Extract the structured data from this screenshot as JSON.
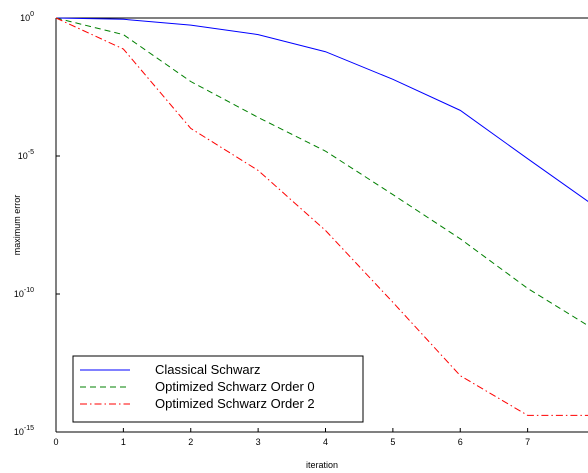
{
  "chart_data": {
    "type": "line",
    "xlabel": "iteration",
    "ylabel": "maximum error",
    "yscale": "log",
    "xlim": [
      0,
      8
    ],
    "ylim": [
      1e-15,
      1
    ],
    "xticks": [
      0,
      1,
      2,
      3,
      4,
      5,
      6,
      7
    ],
    "yticks": [
      {
        "exp": 0,
        "label_base": "10",
        "label_exp": "0"
      },
      {
        "exp": -5,
        "label_base": "10",
        "label_exp": "-5"
      },
      {
        "exp": -10,
        "label_base": "10",
        "label_exp": "-10"
      },
      {
        "exp": -15,
        "label_base": "10",
        "label_exp": "-15"
      }
    ],
    "grid": false,
    "legend_position": "bottom-left",
    "x": [
      0,
      1,
      2,
      3,
      4,
      5,
      6,
      7,
      8
    ],
    "series": [
      {
        "name": "Classical Schwarz",
        "color": "#0000ff",
        "dash": "solid",
        "values": [
          1.0,
          0.9,
          0.55,
          0.25,
          0.06,
          0.006,
          0.00045,
          8e-06,
          1.5e-07
        ]
      },
      {
        "name": "Optimized Schwarz Order 0",
        "color": "#008000",
        "dash": "dashed",
        "values": [
          1.0,
          0.25,
          0.005,
          0.00025,
          1.5e-05,
          4e-07,
          1e-08,
          1.6e-10,
          5e-12
        ]
      },
      {
        "name": "Optimized Schwarz Order 2",
        "color": "#ff0000",
        "dash": "dashdot",
        "values": [
          1.0,
          0.075,
          0.0001,
          3e-06,
          2e-08,
          5e-11,
          1.1e-13,
          4e-15,
          4e-15
        ]
      }
    ]
  }
}
